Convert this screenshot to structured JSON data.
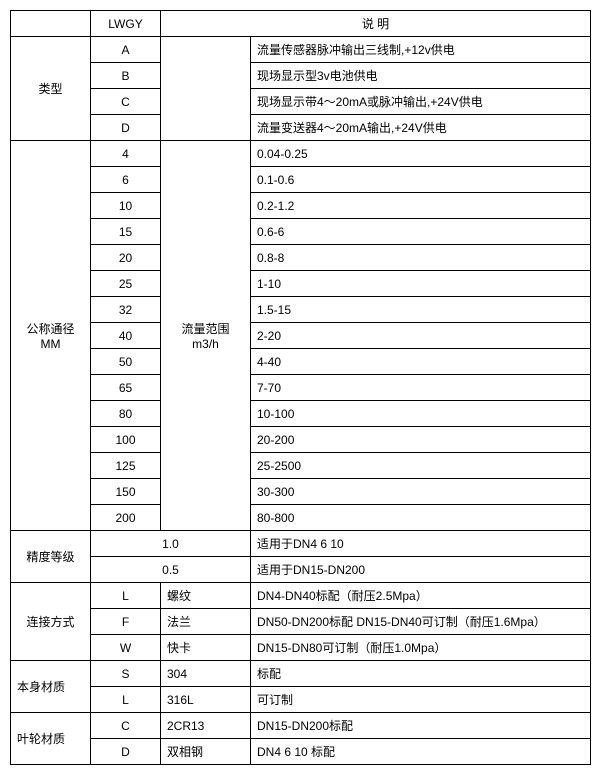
{
  "header": {
    "lwgy": "LWGY",
    "desc_label": "说    明"
  },
  "type": {
    "label": "类型",
    "rows": [
      {
        "code": "A",
        "desc": "流量传感器脉冲输出三线制,+12v供电"
      },
      {
        "code": "B",
        "desc": "现场显示型3v电池供电"
      },
      {
        "code": "C",
        "desc": "现场显示带4～20mA或脉冲输出,+24V供电"
      },
      {
        "code": "D",
        "desc": "流量变送器4～20mA输出,+24V供电"
      }
    ]
  },
  "diameter": {
    "label1": "公称通径",
    "label2": "MM",
    "range_label1": "流量范围",
    "range_label2": "m3/h",
    "rows": [
      {
        "code": "4",
        "range": "0.04-0.25"
      },
      {
        "code": "6",
        "range": "0.1-0.6"
      },
      {
        "code": "10",
        "range": "0.2-1.2"
      },
      {
        "code": "15",
        "range": "0.6-6"
      },
      {
        "code": "20",
        "range": "0.8-8"
      },
      {
        "code": "25",
        "range": "1-10"
      },
      {
        "code": "32",
        "range": "1.5-15"
      },
      {
        "code": "40",
        "range": "2-20"
      },
      {
        "code": "50",
        "range": "4-40"
      },
      {
        "code": "65",
        "range": "7-70"
      },
      {
        "code": "80",
        "range": "10-100"
      },
      {
        "code": "100",
        "range": "20-200"
      },
      {
        "code": "125",
        "range": "25-2500"
      },
      {
        "code": "150",
        "range": "30-300"
      },
      {
        "code": "200",
        "range": "80-800"
      }
    ]
  },
  "accuracy": {
    "label": "精度等级",
    "rows": [
      {
        "val": "1.0",
        "note": "适用于DN4  6  10"
      },
      {
        "val": "0.5",
        "note": "适用于DN15-DN200"
      }
    ]
  },
  "connection": {
    "label": "连接方式",
    "rows": [
      {
        "code": "L",
        "name": "螺纹",
        "note": "DN4-DN40标配（耐压2.5Mpa）"
      },
      {
        "code": "F",
        "name": "法兰",
        "note": "DN50-DN200标配 DN15-DN40可订制（耐压1.6Mpa）"
      },
      {
        "code": "W",
        "name": "快卡",
        "note": "DN15-DN80可订制（耐压1.0Mpa）"
      }
    ]
  },
  "body_material": {
    "label": "本身材质",
    "rows": [
      {
        "code": "S",
        "name": "304",
        "note": "标配"
      },
      {
        "code": "L",
        "name": "316L",
        "note": "可订制"
      }
    ]
  },
  "impeller": {
    "label": "叶轮材质",
    "rows": [
      {
        "code": "C",
        "name": "2CR13",
        "note": "DN15-DN200标配"
      },
      {
        "code": "D",
        "name": "双相钢",
        "note": "DN4 6 10 标配"
      }
    ]
  }
}
